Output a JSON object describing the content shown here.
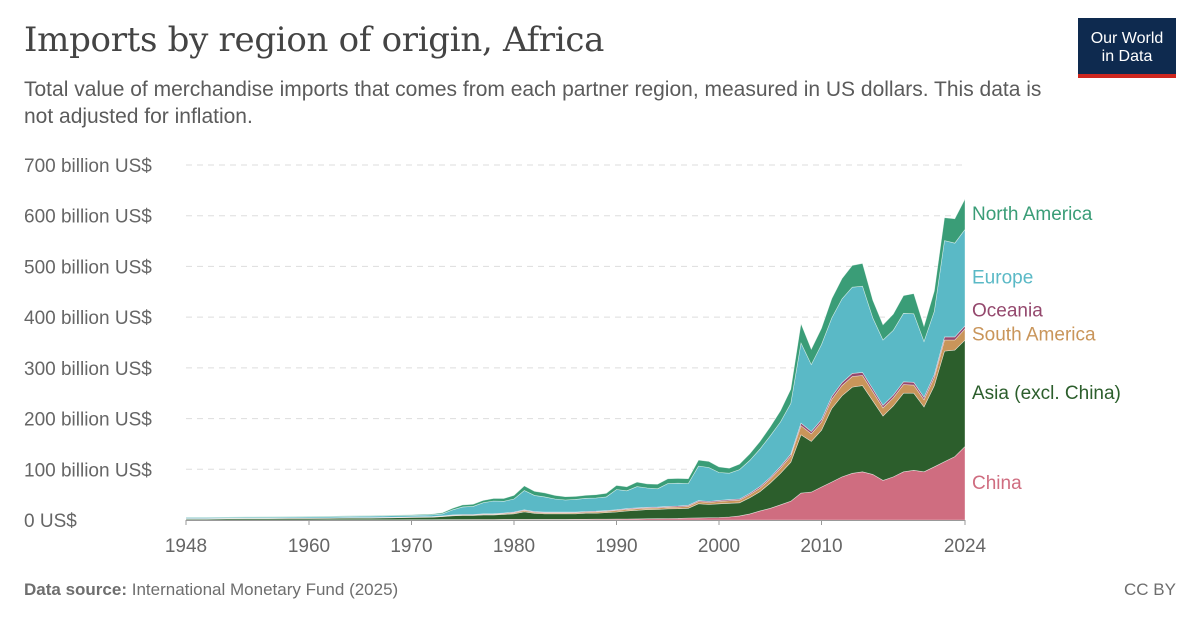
{
  "header": {
    "title": "Imports by region of origin, Africa",
    "subtitle": "Total value of merchandise imports that comes from each partner region, measured in US dollars. This data is not adjusted for inflation.",
    "logo_line1": "Our World",
    "logo_line2": "in Data"
  },
  "footer": {
    "source_label": "Data source:",
    "source_text": "International Monetary Fund (2025)",
    "license": "CC BY"
  },
  "chart_data": {
    "type": "area",
    "stacked": true,
    "x": [
      1948,
      1950,
      1952,
      1954,
      1956,
      1958,
      1960,
      1962,
      1964,
      1966,
      1968,
      1970,
      1972,
      1973,
      1974,
      1975,
      1976,
      1977,
      1978,
      1979,
      1980,
      1981,
      1982,
      1983,
      1984,
      1985,
      1986,
      1987,
      1988,
      1989,
      1990,
      1991,
      1992,
      1993,
      1994,
      1995,
      1996,
      1997,
      1998,
      1999,
      2000,
      2001,
      2002,
      2003,
      2004,
      2005,
      2006,
      2007,
      2008,
      2009,
      2010,
      2011,
      2012,
      2013,
      2014,
      2015,
      2016,
      2017,
      2018,
      2019,
      2020,
      2021,
      2022,
      2023,
      2024
    ],
    "series": [
      {
        "name": "China",
        "color": "#cf6d80",
        "values": [
          0.1,
          0.1,
          0.1,
          0.2,
          0.2,
          0.2,
          0.2,
          0.3,
          0.3,
          0.3,
          0.4,
          0.5,
          0.6,
          0.7,
          0.8,
          0.8,
          0.9,
          0.9,
          1.0,
          1.1,
          1.2,
          1.2,
          1.2,
          1.2,
          1.2,
          1.2,
          1.3,
          1.4,
          1.5,
          1.6,
          1.7,
          2,
          2.2,
          2.5,
          2.8,
          3,
          3.2,
          4,
          4.2,
          4.5,
          5,
          6,
          8,
          12,
          18,
          23,
          30,
          37,
          53,
          55,
          65,
          75,
          85,
          92,
          95,
          90,
          78,
          85,
          95,
          98,
          95,
          105,
          115,
          125,
          145
        ]
      },
      {
        "name": "Asia (excl. China)",
        "color": "#2c5e2c",
        "values": [
          2,
          2,
          2.5,
          2.5,
          2.5,
          3,
          3,
          3,
          3.5,
          3.5,
          4,
          4.5,
          5,
          6,
          7.5,
          8,
          8,
          9,
          9,
          10,
          11,
          15,
          12,
          11,
          11,
          11,
          11,
          12,
          12,
          13,
          14,
          16,
          17,
          18,
          18,
          19,
          19,
          19,
          28,
          26,
          27,
          27,
          26,
          32,
          38,
          50,
          62,
          77,
          115,
          100,
          112,
          145,
          160,
          170,
          170,
          145,
          127,
          140,
          155,
          152,
          128,
          160,
          218,
          210,
          210
        ]
      },
      {
        "name": "South America",
        "color": "#c9955a",
        "values": [
          0.3,
          0.3,
          0.3,
          0.3,
          0.3,
          0.3,
          0.4,
          0.4,
          0.4,
          0.4,
          0.4,
          0.5,
          0.5,
          0.6,
          0.8,
          1,
          1,
          1.2,
          1.3,
          1.5,
          2,
          2.5,
          2,
          2,
          2,
          2,
          2,
          2,
          2.5,
          2.5,
          3,
          3,
          3,
          3,
          3,
          3,
          3.5,
          4,
          4,
          4,
          4.5,
          5,
          5,
          6,
          7,
          8,
          10,
          12,
          18,
          15,
          16,
          18,
          20,
          21,
          20,
          18,
          16,
          16,
          17,
          16,
          14,
          16,
          22,
          20,
          22
        ]
      },
      {
        "name": "Oceania",
        "color": "#94486d",
        "values": [
          0.5,
          0.5,
          0.5,
          0.5,
          0.5,
          0.5,
          0.5,
          0.5,
          0.5,
          0.5,
          0.6,
          0.6,
          0.7,
          0.8,
          0.9,
          1,
          1,
          1.1,
          1.1,
          1.2,
          1.3,
          1.5,
          1.4,
          1.3,
          1.3,
          1.3,
          1.3,
          1.3,
          1.4,
          1.5,
          1.5,
          1.5,
          1.6,
          1.6,
          1.7,
          1.8,
          1.9,
          2,
          2,
          2,
          2.2,
          2.2,
          2.3,
          2.5,
          3,
          3,
          3.5,
          4,
          5,
          4.5,
          5,
          5.5,
          6,
          6,
          6,
          5.5,
          5,
          5,
          5.5,
          5.5,
          5,
          5.5,
          6,
          6,
          6
        ]
      },
      {
        "name": "Europe",
        "color": "#5ab9c6",
        "values": [
          2,
          2,
          2,
          2,
          2,
          2,
          2.5,
          2.5,
          2.5,
          3,
          3,
          3,
          3.5,
          4,
          10,
          15,
          16,
          22,
          25,
          23,
          26,
          38,
          32,
          30,
          26,
          24,
          25,
          26,
          26,
          27,
          40,
          35,
          42,
          38,
          36,
          45,
          45,
          43,
          68,
          67,
          55,
          52,
          58,
          65,
          74,
          82,
          88,
          100,
          158,
          132,
          148,
          155,
          165,
          170,
          170,
          140,
          129,
          128,
          135,
          135,
          110,
          125,
          190,
          185,
          190
        ]
      },
      {
        "name": "North America",
        "color": "#3a9d77",
        "values": [
          0.5,
          0.6,
          0.6,
          0.7,
          0.8,
          0.8,
          0.9,
          1,
          1,
          1,
          1.2,
          1.4,
          1.5,
          2,
          3,
          4,
          4,
          4.5,
          5,
          5.5,
          7,
          9,
          8,
          8,
          7,
          6.5,
          6,
          6,
          6.5,
          7,
          8,
          8,
          9,
          8,
          9,
          9.5,
          9.5,
          9.5,
          12,
          12,
          11,
          10,
          11,
          13,
          15,
          18,
          22,
          28,
          38,
          30,
          32,
          38,
          40,
          43,
          45,
          35,
          30,
          32,
          35,
          40,
          30,
          40,
          45,
          48,
          60
        ]
      }
    ],
    "ylim": [
      0,
      700
    ],
    "yticks": [
      0,
      100,
      200,
      300,
      400,
      500,
      600,
      700
    ],
    "ytick_labels": [
      "0 US$",
      "100 billion US$",
      "200 billion US$",
      "300 billion US$",
      "400 billion US$",
      "500 billion US$",
      "600 billion US$",
      "700 billion US$"
    ],
    "xticks": [
      1948,
      1960,
      1970,
      1980,
      1990,
      2000,
      2010,
      2024
    ],
    "xlim": [
      1948,
      2024
    ],
    "grid": true,
    "legend": "right-labels"
  }
}
